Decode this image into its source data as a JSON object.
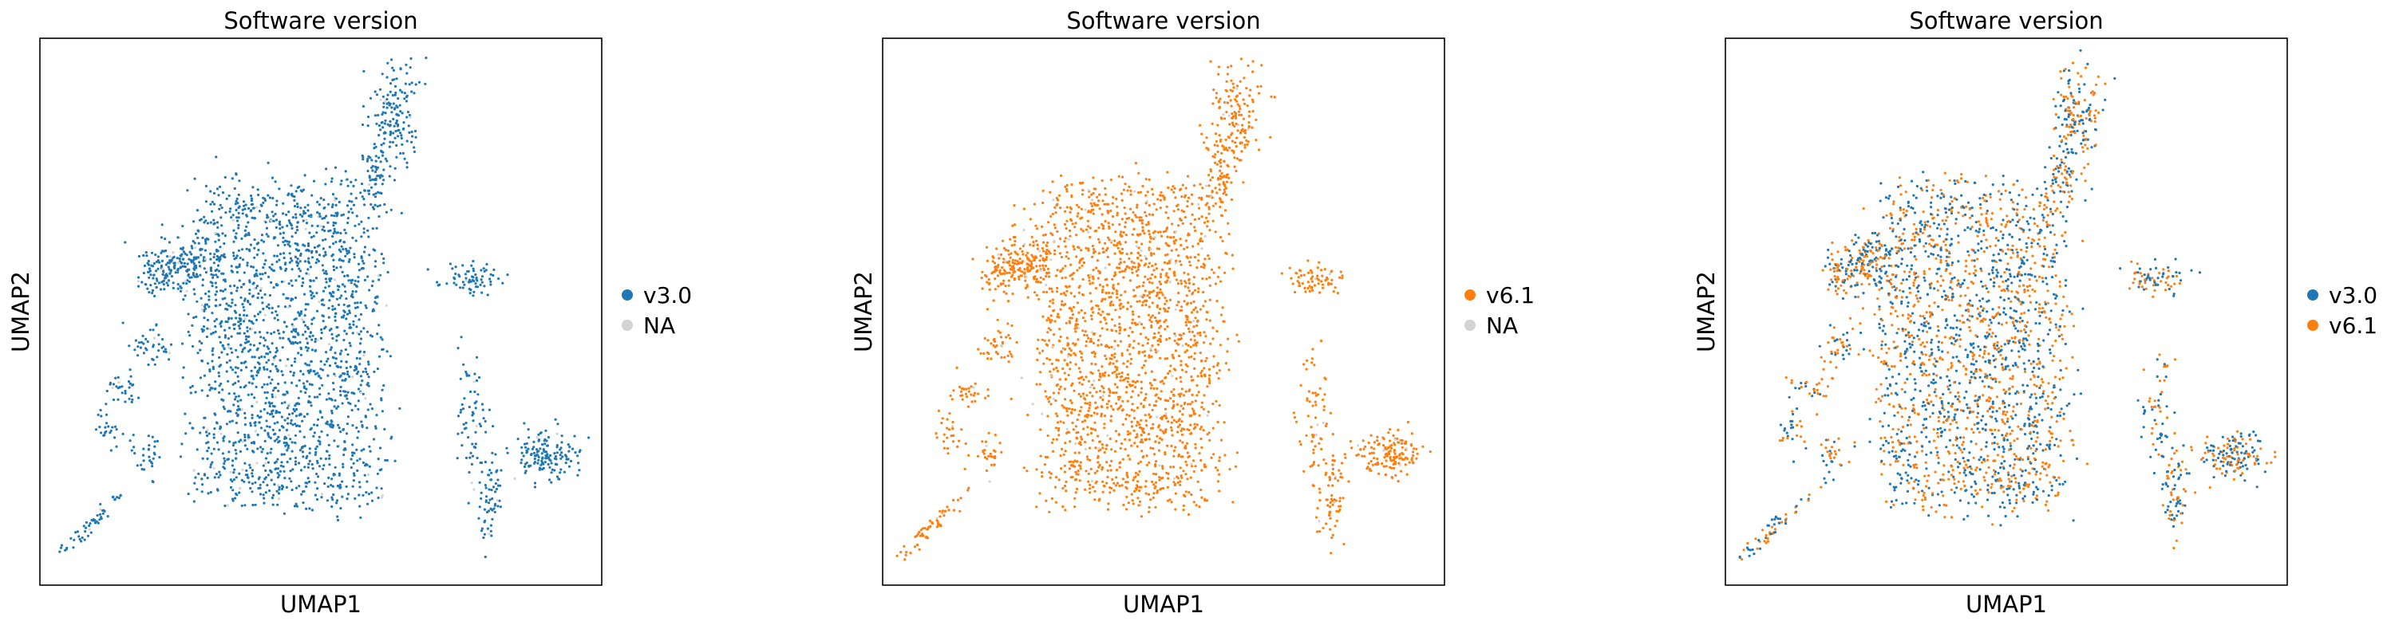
{
  "figure": {
    "panels": [
      {
        "title": "Software version",
        "xlabel": "UMAP1",
        "ylabel": "UMAP2",
        "legend": [
          {
            "label": "v3.0",
            "color": "#1f77b4"
          },
          {
            "label": "NA",
            "color": "#d3d3d3"
          }
        ]
      },
      {
        "title": "Software version",
        "xlabel": "UMAP1",
        "ylabel": "UMAP2",
        "legend": [
          {
            "label": "v6.1",
            "color": "#ff7f0e"
          },
          {
            "label": "NA",
            "color": "#d3d3d3"
          }
        ]
      },
      {
        "title": "Software version",
        "xlabel": "UMAP1",
        "ylabel": "UMAP2",
        "legend": [
          {
            "label": "v3.0",
            "color": "#1f77b4"
          },
          {
            "label": "v6.1",
            "color": "#ff7f0e"
          }
        ]
      }
    ]
  },
  "chart_data": [
    {
      "type": "scatter",
      "title": "Software version",
      "xlabel": "UMAP1",
      "ylabel": "UMAP2",
      "ticks": "none",
      "grid": false,
      "legend_placement": "right",
      "series": [
        {
          "name": "v3.0",
          "color": "#1f77b4",
          "visible": true
        },
        {
          "name": "NA",
          "color": "#d3d3d3",
          "visible": true
        }
      ]
    },
    {
      "type": "scatter",
      "title": "Software version",
      "xlabel": "UMAP1",
      "ylabel": "UMAP2",
      "ticks": "none",
      "grid": false,
      "legend_placement": "right",
      "series": [
        {
          "name": "v6.1",
          "color": "#ff7f0e",
          "visible": true
        },
        {
          "name": "NA",
          "color": "#d3d3d3",
          "visible": true
        }
      ]
    },
    {
      "type": "scatter",
      "title": "Software version",
      "xlabel": "UMAP1",
      "ylabel": "UMAP2",
      "ticks": "none",
      "grid": false,
      "legend_placement": "right",
      "series": [
        {
          "name": "v3.0",
          "color": "#1f77b4",
          "visible": true
        },
        {
          "name": "v6.1",
          "color": "#ff7f0e",
          "visible": true
        }
      ]
    }
  ]
}
